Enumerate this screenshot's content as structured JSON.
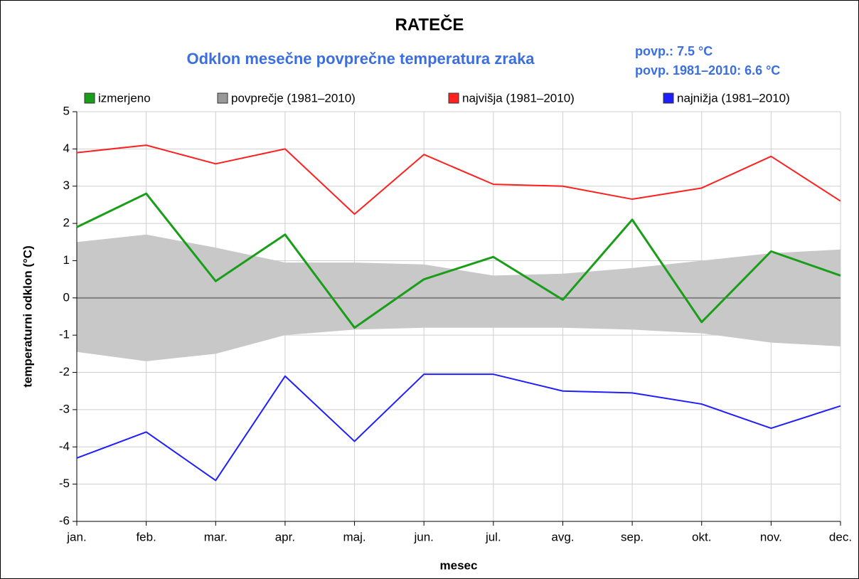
{
  "chart_data": {
    "type": "line",
    "title": "RATEČE",
    "subtitle": "Odklon mesečne povprečne temperatura zraka",
    "annotations": [
      "povp.: 7.5 °C",
      "povp. 1981–2010: 6.6 °C"
    ],
    "x_label": "mesec",
    "y_label": "temperaturni odklon (°C)",
    "categories": [
      "jan.",
      "feb.",
      "mar.",
      "apr.",
      "maj.",
      "jun.",
      "jul.",
      "avg.",
      "sep.",
      "okt.",
      "nov.",
      "dec."
    ],
    "series": [
      {
        "name": "izmerjeno",
        "color": "#1a9e1a",
        "values": [
          1.9,
          2.8,
          0.45,
          1.7,
          -0.8,
          0.5,
          1.1,
          -0.05,
          2.1,
          -0.65,
          1.25,
          0.6
        ]
      },
      {
        "name": "povprečje (1981–2010)",
        "color": "#c8c8c8",
        "type": "band",
        "values": [
          1.5,
          1.7,
          1.35,
          0.95,
          0.95,
          0.9,
          0.6,
          0.65,
          0.8,
          1.0,
          1.2,
          1.3
        ],
        "values_low": [
          -1.45,
          -1.7,
          -1.5,
          -1.0,
          -0.85,
          -0.8,
          -0.8,
          -0.8,
          -0.85,
          -0.95,
          -1.2,
          -1.3
        ]
      },
      {
        "name": "najvišja (1981–2010)",
        "color": "#ff2020",
        "values": [
          3.9,
          4.1,
          3.6,
          4.0,
          2.25,
          3.85,
          3.05,
          3.0,
          2.65,
          2.95,
          3.8,
          2.6
        ]
      },
      {
        "name": "najnižja (1981–2010)",
        "color": "#1e1eff",
        "values": [
          -4.3,
          -3.6,
          -4.9,
          -2.1,
          -3.85,
          -2.05,
          -2.05,
          -2.5,
          -2.55,
          -2.85,
          -3.5,
          -2.9
        ]
      }
    ],
    "ylim": [
      -6,
      5
    ],
    "yticks": [
      -6,
      -5,
      -4,
      -3,
      -2,
      -1,
      0,
      1,
      2,
      3,
      4,
      5
    ],
    "grid": true
  }
}
